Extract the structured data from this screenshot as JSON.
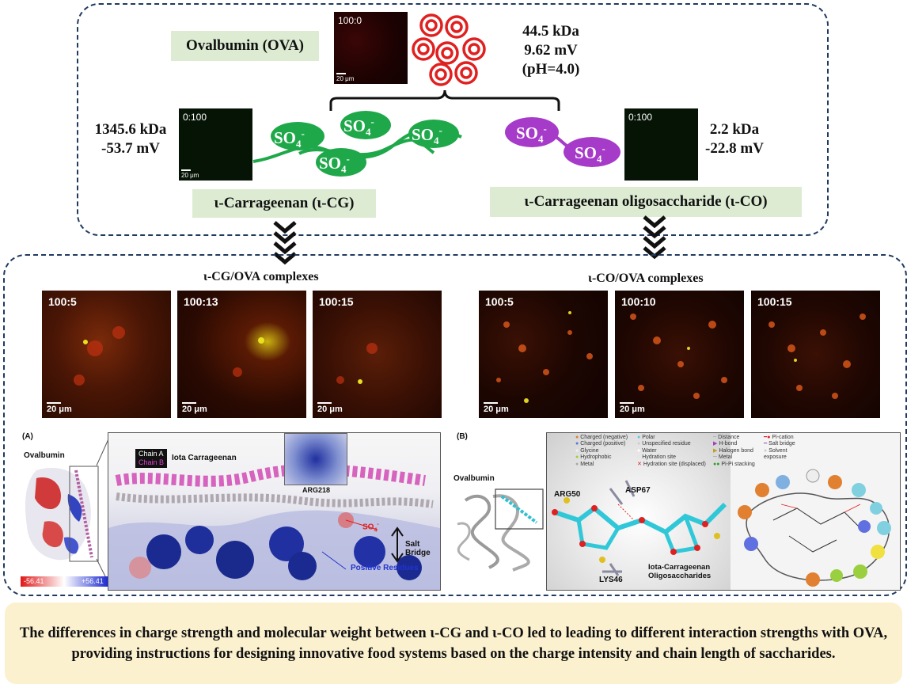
{
  "top": {
    "ova_label": "Ovalbumin (OVA)",
    "ova_props": [
      "44.5 kDa",
      "9.62 mV",
      "(pH=4.0)"
    ],
    "ova_ratio": "100:0",
    "cg_props": [
      "1345.6 kDa",
      "-53.7 mV"
    ],
    "cg_ratio": "0:100",
    "cg_label": "ι-Carrageenan (ι-CG)",
    "co_props": [
      "2.2 kDa",
      "-22.8 mV"
    ],
    "co_ratio": "0:100",
    "co_label": "ι-Carrageenan oligosaccharide (ι-CO)",
    "so4": "SO4-",
    "scale_small": "20 μm"
  },
  "bottom": {
    "cg_title": "ι-CG/OVA complexes",
    "co_title": "ι-CO/OVA complexes",
    "cg_images": [
      {
        "ratio": "100:5"
      },
      {
        "ratio": "100:13"
      },
      {
        "ratio": "100:15"
      }
    ],
    "co_images": [
      {
        "ratio": "100:5"
      },
      {
        "ratio": "100:10"
      },
      {
        "ratio": "100:15"
      }
    ],
    "scale": "20 μm"
  },
  "panel_a": {
    "tag": "(A)",
    "protein": "Ovalbumin",
    "chain_a": "Chain A",
    "chain_b": "Chain B",
    "ligand": "Iota Carrageenan",
    "residue": "ARG218",
    "so4": "SO4-",
    "salt_bridge": "Salt Bridge",
    "positive": "Positive Residues",
    "scale_min": "-56.41",
    "scale_max": "+56.41"
  },
  "panel_b": {
    "tag": "(B)",
    "protein": "Ovalbumin",
    "residues": [
      "ARG50",
      "ASP67",
      "LYS46"
    ],
    "ligand": "Iota-Carrageenan Oligosaccharides",
    "legend_col1": [
      "Charged (negative)",
      "Charged (positive)",
      "Glycine",
      "Hydrophobic",
      "Metal"
    ],
    "legend_col2": [
      "Polar",
      "Unspecified residue",
      "Water",
      "Hydration site",
      "Hydration site (displaced)"
    ],
    "legend_col3": [
      "Distance",
      "H-bond",
      "Halogen bond",
      "Metal",
      "Pi-Pi stacking"
    ],
    "legend_col4": [
      "Pi-cation",
      "Salt bridge",
      "Solvent exposure"
    ]
  },
  "summary": "The differences in charge strength and molecular weight between ι-CG and ι-CO led to leading to different interaction strengths with OVA, providing instructions for designing innovative food systems based on the charge intensity and chain length of saccharides."
}
